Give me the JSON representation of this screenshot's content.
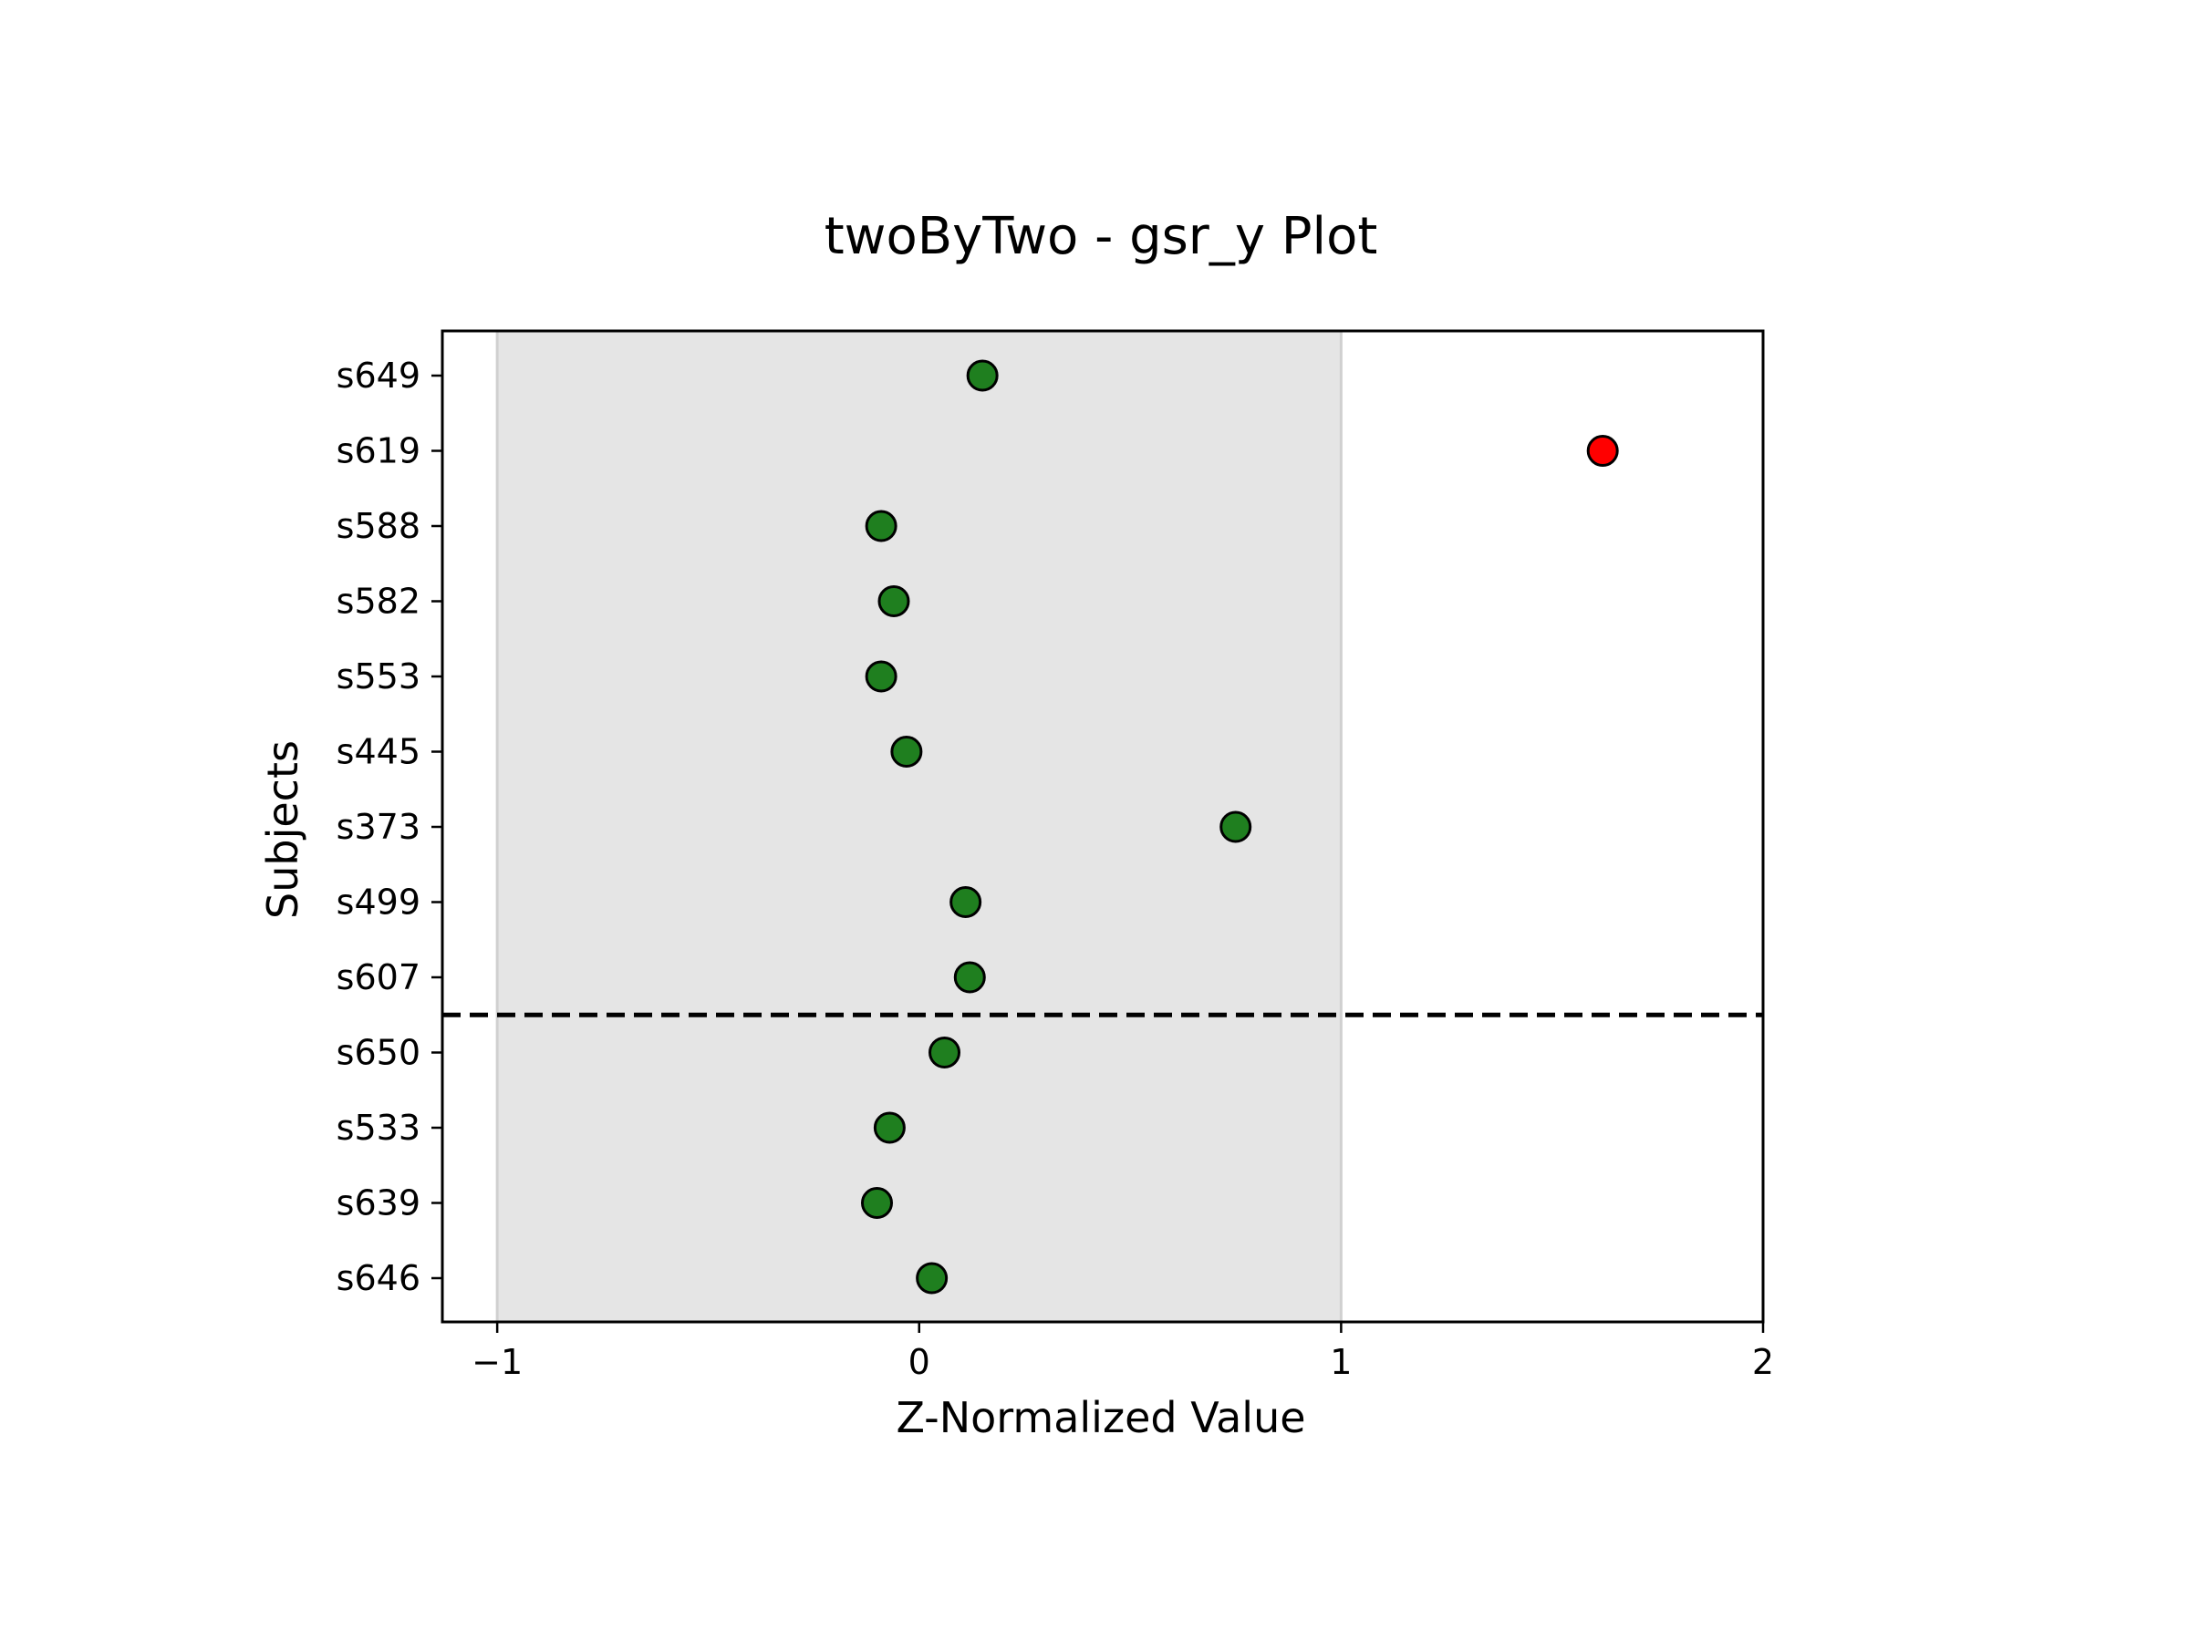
{
  "chart_data": {
    "type": "scatter",
    "title": "twoByTwo - gsr_y Plot",
    "xlabel": "Z-Normalized Value",
    "ylabel": "Subjects",
    "xlim": [
      -1.13,
      2.0
    ],
    "xticks": [
      -1,
      0,
      1,
      2
    ],
    "xtick_labels": [
      "−1",
      "0",
      "1",
      "2"
    ],
    "grid": false,
    "shaded_band": {
      "from": -1,
      "to": 1,
      "color": "#e5e5e5",
      "edge_color": "#d0d0d0"
    },
    "separator_after_index": 8,
    "separator_style": "dashed",
    "normal_color": "#1f7f1f",
    "outlier_color": "#ff0000",
    "marker_edge_color": "#000000",
    "categories": [
      "s649",
      "s619",
      "s588",
      "s582",
      "s553",
      "s445",
      "s373",
      "s499",
      "s607",
      "s650",
      "s533",
      "s639",
      "s646"
    ],
    "values": [
      0.15,
      1.62,
      -0.09,
      -0.06,
      -0.09,
      -0.03,
      0.75,
      0.11,
      0.12,
      0.06,
      -0.07,
      -0.1,
      0.03
    ],
    "outlier": [
      false,
      true,
      false,
      false,
      false,
      false,
      false,
      false,
      false,
      false,
      false,
      false,
      false
    ]
  }
}
